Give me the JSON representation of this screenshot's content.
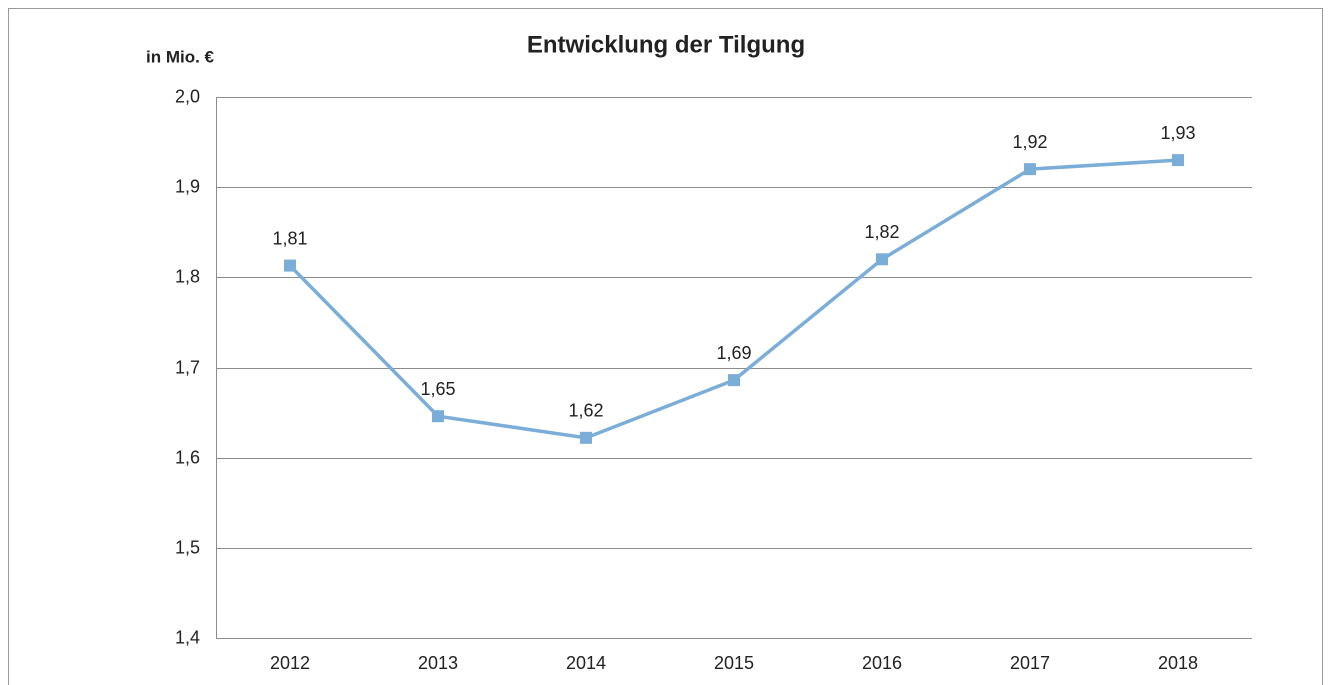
{
  "chart_data": {
    "type": "line",
    "title": "Entwicklung der Tilgung",
    "y_label": "in Mio. €",
    "categories": [
      "2012",
      "2013",
      "2014",
      "2015",
      "2016",
      "2017",
      "2018"
    ],
    "values": [
      1.813,
      1.646,
      1.622,
      1.686,
      1.82,
      1.92,
      1.93
    ],
    "value_labels": [
      "1,81",
      "1,65",
      "1,62",
      "1,69",
      "1,82",
      "1,92",
      "1,93"
    ],
    "color": "#7aadd8",
    "ylim": [
      1.4,
      2.0
    ],
    "yticks": [
      {
        "value": 1.4,
        "label": "1,4"
      },
      {
        "value": 1.5,
        "label": "1,5"
      },
      {
        "value": 1.6,
        "label": "1,6"
      },
      {
        "value": 1.7,
        "label": "1,7"
      },
      {
        "value": 1.8,
        "label": "1,8"
      },
      {
        "value": 1.9,
        "label": "1,9"
      },
      {
        "value": 2.0,
        "label": "2,0"
      }
    ],
    "grid": true
  }
}
